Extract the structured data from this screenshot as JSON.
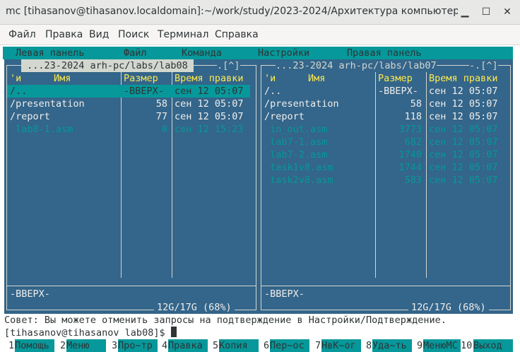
{
  "window": {
    "title": "mc [tihasanov@tihasanov.localdomain]:~/work/study/2023-2024/Архитектура компьютера/-...",
    "minimize_icon": "minimize-icon",
    "maximize_icon": "maximize-icon",
    "close_icon": "close-icon"
  },
  "menubar": [
    "Файл",
    "Правка",
    "Вид",
    "Поиск",
    "Терминал",
    "Справка"
  ],
  "mc_menu": {
    "left": "Левая панель",
    "file": "Файл",
    "command": "Команда",
    "settings": "Настройки",
    "right": "Правая панель"
  },
  "left_panel": {
    "path": " ...23-2024 arh-pc/labs/lab08 ",
    "path_suffix": ".[^]",
    "sort_indicator": "'и",
    "col_name": "Имя",
    "col_size": "Размер",
    "col_time": "Время правки",
    "rows": [
      {
        "name": "/..",
        "size": "-ВВЕРХ-",
        "time": "сен 12 05:07",
        "kind": "selected"
      },
      {
        "name": "/presentation",
        "size": "58",
        "time": "сен 12 05:07",
        "kind": "dir"
      },
      {
        "name": "/report",
        "size": "77",
        "time": "сен 12 05:07",
        "kind": "dir"
      },
      {
        "name": " lab8-1.asm",
        "size": "0",
        "time": "сен 12 15:23",
        "kind": "file"
      }
    ],
    "status": "-ВВЕРХ-",
    "disk": "12G/17G (68%)"
  },
  "right_panel": {
    "path": "...23-2024 arh-pc/labs/lab07",
    "path_suffix": "-.[^]",
    "sort_indicator": "'и",
    "col_name": "Имя",
    "col_size": "Размер",
    "col_time": "Время правки",
    "rows": [
      {
        "name": "/..",
        "size": "-ВВЕРХ-",
        "time": "сен 12 05:07",
        "kind": "dir"
      },
      {
        "name": "/presentation",
        "size": "58",
        "time": "сен 12 05:07",
        "kind": "dir"
      },
      {
        "name": "/report",
        "size": "118",
        "time": "сен 12 05:07",
        "kind": "dir"
      },
      {
        "name": " in_out.asm",
        "size": "3773",
        "time": "сен 12 05:07",
        "kind": "file"
      },
      {
        "name": " lab7-1.asm",
        "size": "682",
        "time": "сен 12 05:07",
        "kind": "file"
      },
      {
        "name": " lab7-2.asm",
        "size": "1740",
        "time": "сен 12 05:07",
        "kind": "file"
      },
      {
        "name": " task1v8.asm",
        "size": "1744",
        "time": "сен 12 05:07",
        "kind": "file"
      },
      {
        "name": " task2v8.asm",
        "size": "583",
        "time": "сен 12 05:07",
        "kind": "file"
      }
    ],
    "status": "-ВВЕРХ-",
    "disk": "12G/17G (68%)"
  },
  "hint": "Совет: Вы можете отменить запросы на подтверждение в Настройки/Подтверждение.",
  "prompt": "[tihasanov@tihasanov lab08]$ ",
  "fkeys": [
    {
      "num": "1",
      "label": "Помощь"
    },
    {
      "num": "2",
      "label": "Меню"
    },
    {
      "num": "3",
      "label": "Про~тр"
    },
    {
      "num": "4",
      "label": "Правка"
    },
    {
      "num": "5",
      "label": "Копия"
    },
    {
      "num": "6",
      "label": "Пер~ос"
    },
    {
      "num": "7",
      "label": "НвК~ог"
    },
    {
      "num": "8",
      "label": "Уда~ть"
    },
    {
      "num": "9",
      "label": "МенюMC"
    },
    {
      "num": "10",
      "label": "Выход"
    }
  ]
}
